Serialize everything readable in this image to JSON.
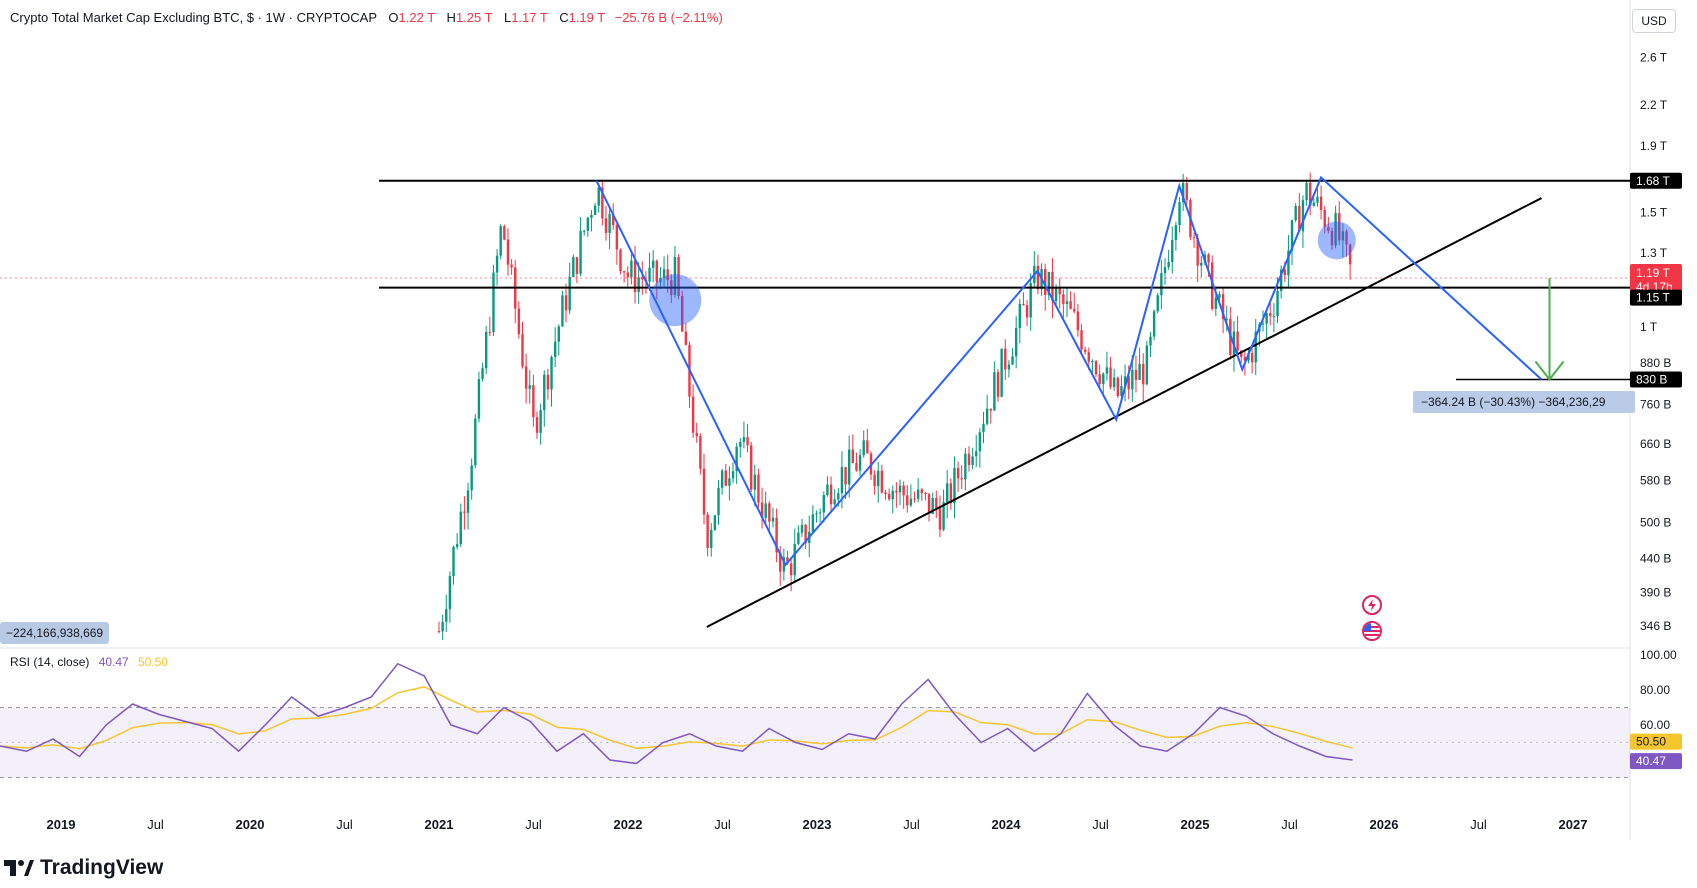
{
  "header": {
    "symbol": "Crypto Total Market Cap Excluding BTC, $ · 1W · CRYPTOCAP",
    "o_label": "O",
    "o_value": "1.22 T",
    "h_label": "H",
    "h_value": "1.25 T",
    "l_label": "L",
    "l_value": "1.17 T",
    "c_label": "C",
    "c_value": "1.19 T",
    "change": "−25.76 B (−2.11%)"
  },
  "currency_button": "USD",
  "price_axis": [
    "2.6 T",
    "2.2 T",
    "1.9 T",
    "1.5 T",
    "1.3 T",
    "1 T",
    "880 B",
    "760 B",
    "660 B",
    "580 B",
    "500 B",
    "440 B",
    "390 B",
    "346 B"
  ],
  "price_tags": {
    "top_level": "1.68 T",
    "current_price": "1.19 T",
    "countdown": "4d 17h",
    "mid_level": "1.15 T",
    "target_level": "830 B"
  },
  "measure_label": "−364.24 B (−30.43%) −364,236,29",
  "left_label": "−224,166,938,669",
  "rsi": {
    "legend_name": "RSI (14, close)",
    "rsi_value": "40.47",
    "ma_value": "50.50",
    "axis": [
      "100.00",
      "80.00",
      "60.00"
    ],
    "tag_ma": "50.50",
    "tag_rsi": "40.47"
  },
  "time_axis": [
    {
      "label": "2019",
      "bold": true
    },
    {
      "label": "Jul",
      "bold": false
    },
    {
      "label": "2020",
      "bold": true
    },
    {
      "label": "Jul",
      "bold": false
    },
    {
      "label": "2021",
      "bold": true
    },
    {
      "label": "Jul",
      "bold": false
    },
    {
      "label": "2022",
      "bold": true
    },
    {
      "label": "Jul",
      "bold": false
    },
    {
      "label": "2023",
      "bold": true
    },
    {
      "label": "Jul",
      "bold": false
    },
    {
      "label": "2024",
      "bold": true
    },
    {
      "label": "Jul",
      "bold": false
    },
    {
      "label": "2025",
      "bold": true
    },
    {
      "label": "Jul",
      "bold": false
    },
    {
      "label": "2026",
      "bold": true
    },
    {
      "label": "Jul",
      "bold": false
    },
    {
      "label": "2027",
      "bold": true
    }
  ],
  "brand": "TradingView",
  "colors": {
    "up": "#089981",
    "down": "#f23645",
    "zigzag": "#2962ff",
    "rsi_line": "#7e57c2",
    "rsi_ma": "#f7c62f",
    "target_arrow": "#4caf50"
  },
  "chart_data": {
    "type": "candlestick",
    "scale": "log",
    "interval": "1W",
    "candles_approx": [
      {
        "t": "2021-01",
        "c": 0.34
      },
      {
        "t": "2021-03",
        "c": 0.62
      },
      {
        "t": "2021-05",
        "c": 1.45
      },
      {
        "t": "2021-07",
        "c": 0.7
      },
      {
        "t": "2021-09",
        "c": 1.1
      },
      {
        "t": "2021-11",
        "c": 1.65
      },
      {
        "t": "2022-01",
        "c": 1.2
      },
      {
        "t": "2022-03",
        "c": 1.18
      },
      {
        "t": "2022-04",
        "c": 1.2
      },
      {
        "t": "2022-06",
        "c": 0.48
      },
      {
        "t": "2022-08",
        "c": 0.68
      },
      {
        "t": "2022-11",
        "c": 0.42
      },
      {
        "t": "2023-02",
        "c": 0.58
      },
      {
        "t": "2023-04",
        "c": 0.63
      },
      {
        "t": "2023-06",
        "c": 0.56
      },
      {
        "t": "2023-09",
        "c": 0.52
      },
      {
        "t": "2023-12",
        "c": 0.78
      },
      {
        "t": "2024-03",
        "c": 1.2
      },
      {
        "t": "2024-05",
        "c": 1.05
      },
      {
        "t": "2024-08",
        "c": 0.78
      },
      {
        "t": "2024-10",
        "c": 0.88
      },
      {
        "t": "2024-12",
        "c": 1.65
      },
      {
        "t": "2025-02",
        "c": 1.15
      },
      {
        "t": "2025-04",
        "c": 0.86
      },
      {
        "t": "2025-06",
        "c": 1.1
      },
      {
        "t": "2025-08",
        "c": 1.62
      },
      {
        "t": "2025-10",
        "c": 1.4
      },
      {
        "t": "2025-11",
        "c": 1.19
      }
    ],
    "horizontal_levels": [
      1.68,
      1.15,
      0.83
    ],
    "zigzag": [
      {
        "t": "2021-11",
        "v": 1.68
      },
      {
        "t": "2022-11",
        "v": 0.43
      },
      {
        "t": "2024-03",
        "v": 1.22
      },
      {
        "t": "2024-08",
        "v": 0.72
      },
      {
        "t": "2024-12",
        "v": 1.65
      },
      {
        "t": "2025-04",
        "v": 0.86
      },
      {
        "t": "2025-09",
        "v": 1.7
      },
      {
        "t": "2026-11",
        "v": 0.83
      }
    ],
    "trendline": [
      {
        "t": "2022-06",
        "v": 0.345
      },
      {
        "t": "2026-11",
        "v": 1.58
      }
    ],
    "measure": {
      "from": 1.19,
      "to": 0.83,
      "change": "−364.24 B (−30.43%)"
    },
    "rsi_series_approx": [
      48,
      45,
      52,
      42,
      60,
      72,
      66,
      62,
      58,
      45,
      60,
      76,
      65,
      70,
      76,
      95,
      88,
      60,
      55,
      70,
      62,
      45,
      55,
      40,
      38,
      50,
      55,
      48,
      45,
      58,
      50,
      46,
      55,
      52,
      72,
      86,
      66,
      50,
      58,
      45,
      55,
      78,
      60,
      48,
      45,
      55,
      70,
      65,
      55,
      48,
      42,
      40
    ],
    "rsi_levels": [
      70,
      30
    ],
    "rsi_ylim": [
      20,
      100
    ]
  }
}
